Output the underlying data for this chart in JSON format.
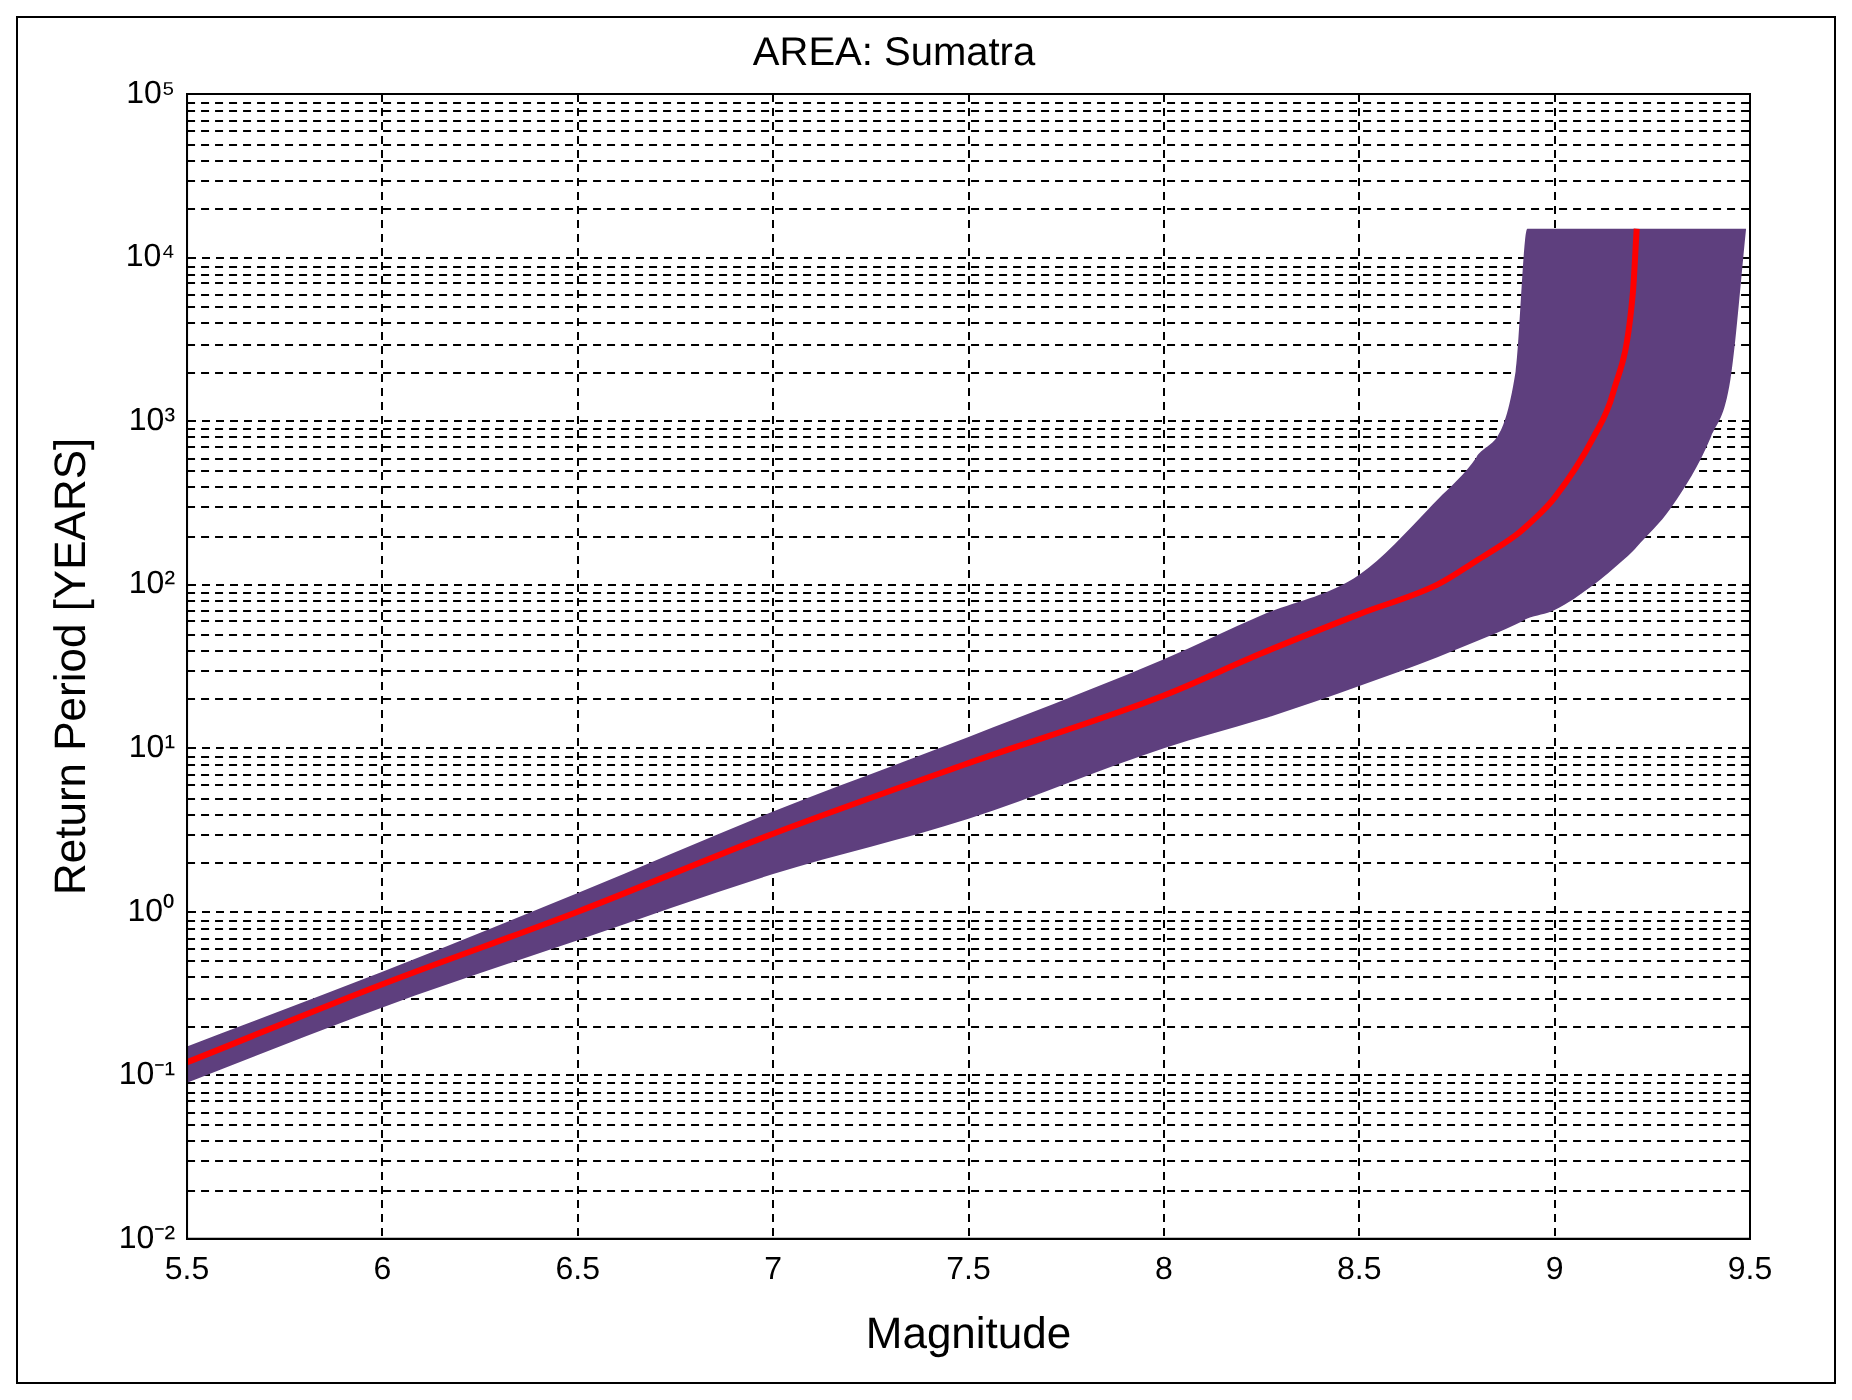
{
  "chart_data": {
    "type": "line",
    "title": "AREA: Sumatra",
    "xlabel": "Magnitude",
    "ylabel": "Return Period [YEARS]",
    "x": [
      5.5,
      6,
      6.5,
      7,
      7.5,
      8,
      8.25,
      8.5,
      8.7,
      8.8,
      8.9,
      8.93,
      9.0,
      9.1,
      9.15,
      9.2,
      9.21,
      9.3,
      9.4,
      9.45,
      9.49
    ],
    "series": [
      {
        "color": "#ff0000",
        "values": [
          0.12,
          0.36,
          1.0,
          3.0,
          8.1,
          21,
          38,
          66,
          100,
          140,
          200,
          230,
          340,
          800,
          1500,
          6000,
          15000,
          null,
          null,
          null,
          null
        ],
        "upper": [
          0.15,
          0.43,
          1.3,
          4.1,
          11.7,
          35,
          65,
          115,
          330,
          600,
          2000,
          15000,
          15000,
          15000,
          15000,
          15000,
          15000,
          15000,
          15000,
          15000,
          15000
        ],
        "lower": [
          0.09,
          0.26,
          0.67,
          1.7,
          3.7,
          10,
          15,
          24,
          36,
          45,
          57,
          62,
          70,
          100,
          125,
          160,
          170,
          300,
          800,
          1800,
          15000
        ]
      }
    ],
    "log": "y",
    "grid": true,
    "legend": false,
    "marker": "none",
    "line_style": "solid",
    "xlim": [
      5.5,
      9.5
    ],
    "xticks": [
      5.5,
      6,
      6.5,
      7,
      7.5,
      8,
      8.5,
      9,
      9.5
    ],
    "ylim": [
      0.01,
      100000
    ],
    "yticks": [
      {
        "value": 0.01,
        "label": "10⁻²"
      },
      {
        "value": 0.1,
        "label": "10⁻¹"
      },
      {
        "value": 1,
        "label": "10⁰"
      },
      {
        "value": 10,
        "label": "10¹"
      },
      {
        "value": 100,
        "label": "10²"
      },
      {
        "value": 1000,
        "label": "10³"
      },
      {
        "value": 10000,
        "label": "10⁴"
      },
      {
        "value": 100000,
        "label": "10⁵"
      }
    ]
  }
}
